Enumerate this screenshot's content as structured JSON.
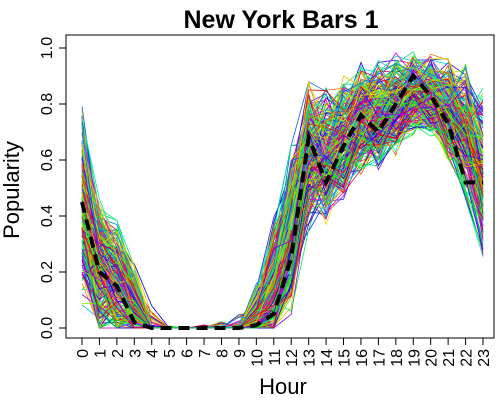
{
  "chart_data": {
    "type": "line",
    "title": "New York Bars 1",
    "xlabel": "Hour",
    "ylabel": "Popularity",
    "x": [
      0,
      1,
      2,
      3,
      4,
      5,
      6,
      7,
      8,
      9,
      10,
      11,
      12,
      13,
      14,
      15,
      16,
      17,
      18,
      19,
      20,
      21,
      22,
      23
    ],
    "x_tick_labels": [
      "0",
      "1",
      "2",
      "3",
      "4",
      "5",
      "6",
      "7",
      "8",
      "9",
      "10",
      "11",
      "12",
      "13",
      "14",
      "15",
      "16",
      "17",
      "18",
      "19",
      "20",
      "21",
      "22",
      "23"
    ],
    "y_tick_labels": [
      "0.0",
      "0.2",
      "0.4",
      "0.6",
      "0.8",
      "1.0"
    ],
    "y_ticks": [
      0.0,
      0.2,
      0.4,
      0.6,
      0.8,
      1.0
    ],
    "xlim": [
      0,
      23
    ],
    "ylim": [
      0,
      1
    ],
    "grid": false,
    "legend": "none",
    "background_series_note_count": 220,
    "mean_series": {
      "style": "dashed",
      "color": "#000000",
      "values": [
        0.45,
        0.2,
        0.15,
        0.02,
        0.0,
        0.0,
        0.0,
        0.0,
        0.0,
        0.0,
        0.01,
        0.05,
        0.25,
        0.68,
        0.52,
        0.65,
        0.76,
        0.7,
        0.8,
        0.9,
        0.83,
        0.73,
        0.52,
        0.52
      ]
    },
    "background_profile": {
      "mean": [
        0.45,
        0.22,
        0.17,
        0.08,
        0.02,
        0.0,
        0.0,
        0.0,
        0.0,
        0.01,
        0.04,
        0.15,
        0.35,
        0.62,
        0.62,
        0.68,
        0.75,
        0.76,
        0.8,
        0.84,
        0.83,
        0.78,
        0.7,
        0.55
      ],
      "spread": [
        0.3,
        0.22,
        0.18,
        0.12,
        0.05,
        0.01,
        0.0,
        0.01,
        0.02,
        0.05,
        0.1,
        0.2,
        0.25,
        0.22,
        0.2,
        0.18,
        0.17,
        0.16,
        0.15,
        0.12,
        0.12,
        0.15,
        0.2,
        0.25
      ]
    }
  }
}
